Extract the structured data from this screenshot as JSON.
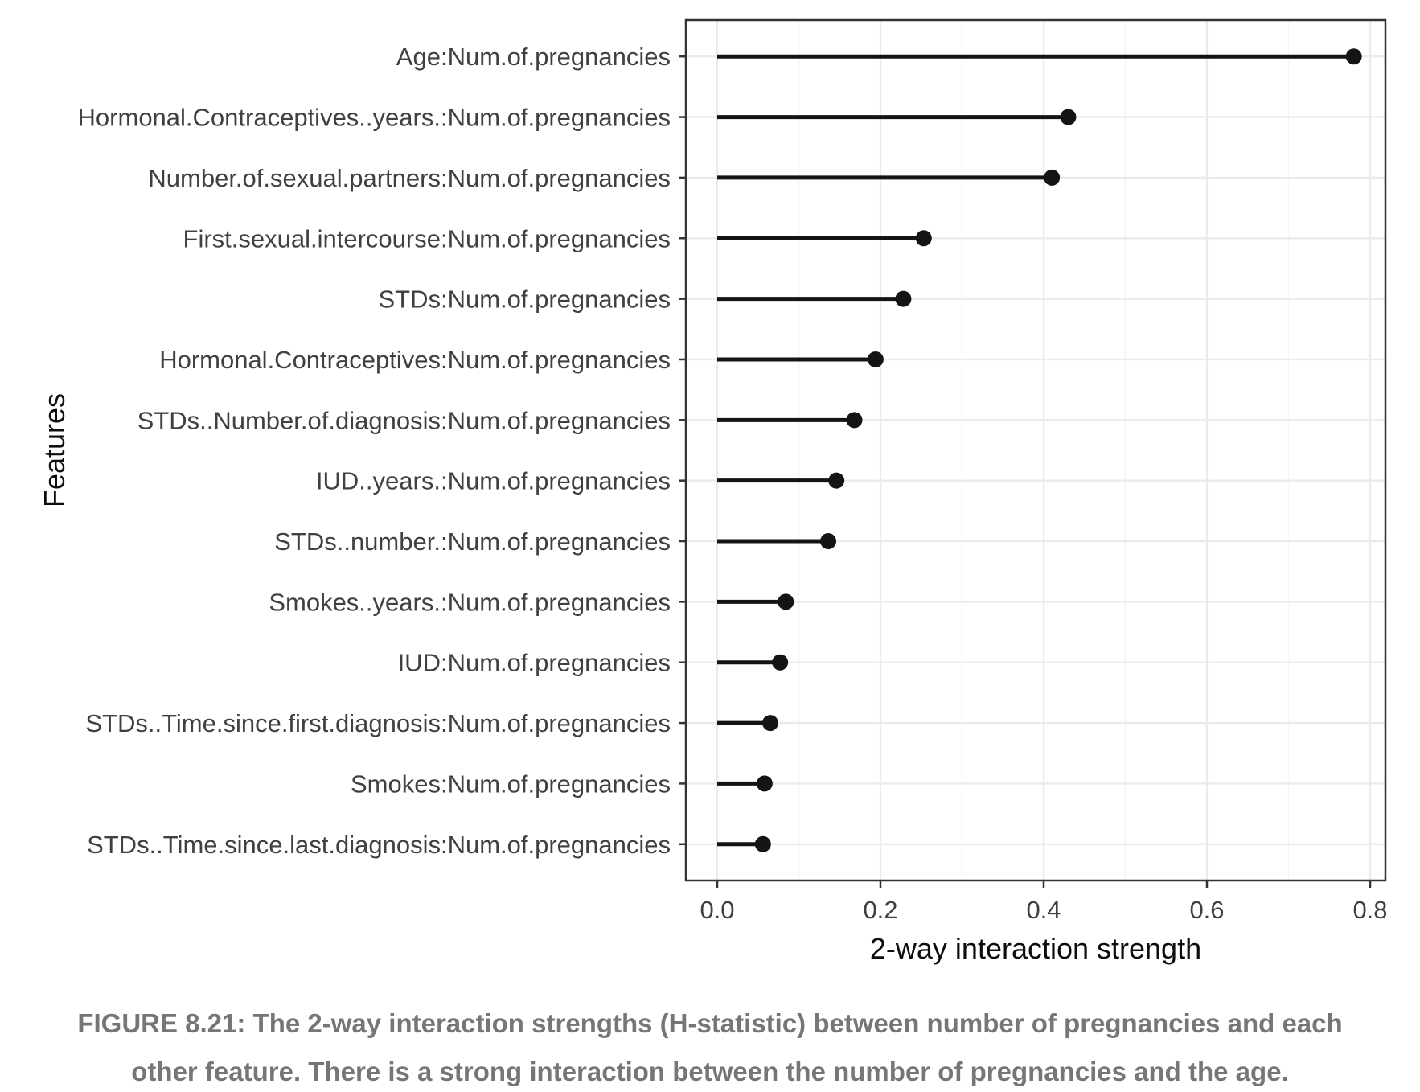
{
  "figure": {
    "caption_lines": [
      "FIGURE 8.21: The 2-way interaction strengths (H-statistic) between number of pregnancies and each",
      "other feature. There is a strong interaction between the number of pregnancies and the age."
    ],
    "caption_color": "#767676"
  },
  "chart_data": {
    "type": "bar",
    "variant": "lollipop",
    "orientation": "horizontal",
    "title": "",
    "xlabel": "2-way interaction strength",
    "ylabel": "Features",
    "xlim": [
      0,
      0.8
    ],
    "x_ticks": [
      0.0,
      0.2,
      0.4,
      0.6,
      0.8
    ],
    "x_tick_labels": [
      "0.0",
      "0.2",
      "0.4",
      "0.6",
      "0.8"
    ],
    "x_minor_gridlines": [
      0.1,
      0.3,
      0.5,
      0.7
    ],
    "grid": true,
    "legend": "none",
    "categories": [
      "Age:Num.of.pregnancies",
      "Hormonal.Contraceptives..years.:Num.of.pregnancies",
      "Number.of.sexual.partners:Num.of.pregnancies",
      "First.sexual.intercourse:Num.of.pregnancies",
      "STDs:Num.of.pregnancies",
      "Hormonal.Contraceptives:Num.of.pregnancies",
      "STDs..Number.of.diagnosis:Num.of.pregnancies",
      "IUD..years.:Num.of.pregnancies",
      "STDs..number.:Num.of.pregnancies",
      "Smokes..years.:Num.of.pregnancies",
      "IUD:Num.of.pregnancies",
      "STDs..Time.since.first.diagnosis:Num.of.pregnancies",
      "Smokes:Num.of.pregnancies",
      "STDs..Time.since.last.diagnosis:Num.of.pregnancies"
    ],
    "values": [
      0.78,
      0.43,
      0.41,
      0.253,
      0.228,
      0.194,
      0.168,
      0.146,
      0.136,
      0.084,
      0.077,
      0.065,
      0.058,
      0.056
    ],
    "colors": {
      "point": "#141414",
      "segment": "#141414",
      "panel_border": "#333333",
      "grid_major": "#ebebeb",
      "grid_minor": "#f5f5f5",
      "axis_text": "#404040",
      "axis_title": "#0d0d0d",
      "tick_mark": "#333333",
      "background": "#ffffff"
    }
  }
}
